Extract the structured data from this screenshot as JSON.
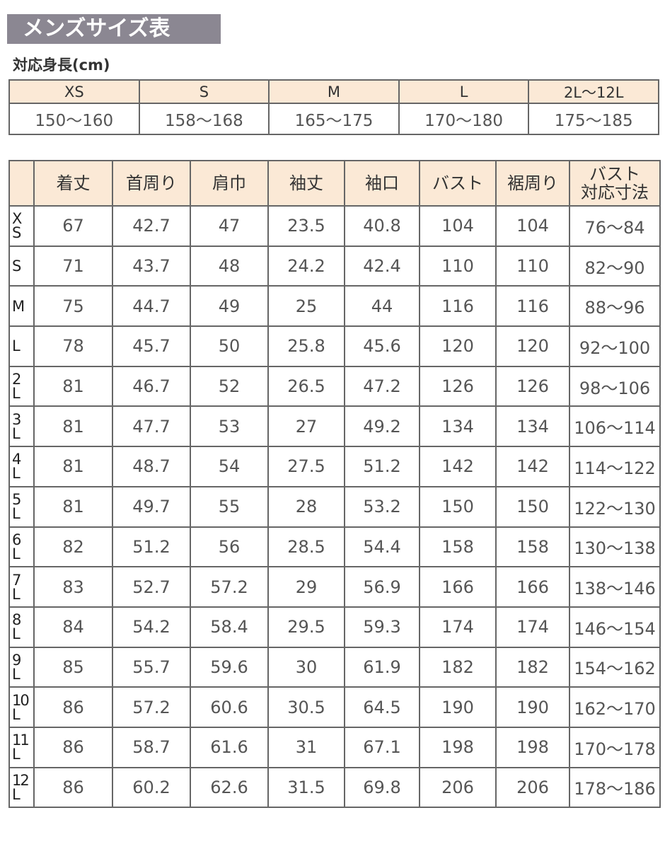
{
  "title": "メンズサイズ表",
  "height_label": "対応身長(cm)",
  "height_table": {
    "sizes": [
      "XS",
      "S",
      "M",
      "L",
      "2L〜12L"
    ],
    "heights": [
      "150〜160",
      "158〜168",
      "165〜175",
      "170〜180",
      "175〜185"
    ]
  },
  "size_table": {
    "headers": [
      "",
      "着丈",
      "首周り",
      "肩巾",
      "袖丈",
      "袖口",
      "バスト",
      "裾周り",
      "バスト\n対応寸法"
    ],
    "rows": [
      [
        "XS",
        "67",
        "42.7",
        "47",
        "23.5",
        "40.8",
        "104",
        "104",
        "76〜84"
      ],
      [
        "S",
        "71",
        "43.7",
        "48",
        "24.2",
        "42.4",
        "110",
        "110",
        "82〜90"
      ],
      [
        "M",
        "75",
        "44.7",
        "49",
        "25",
        "44",
        "116",
        "116",
        "88〜96"
      ],
      [
        "L",
        "78",
        "45.7",
        "50",
        "25.8",
        "45.6",
        "120",
        "120",
        "92〜100"
      ],
      [
        "2L",
        "81",
        "46.7",
        "52",
        "26.5",
        "47.2",
        "126",
        "126",
        "98〜106"
      ],
      [
        "3L",
        "81",
        "47.7",
        "53",
        "27",
        "49.2",
        "134",
        "134",
        "106〜114"
      ],
      [
        "4L",
        "81",
        "48.7",
        "54",
        "27.5",
        "51.2",
        "142",
        "142",
        "114〜122"
      ],
      [
        "5L",
        "81",
        "49.7",
        "55",
        "28",
        "53.2",
        "150",
        "150",
        "122〜130"
      ],
      [
        "6L",
        "82",
        "51.2",
        "56",
        "28.5",
        "54.4",
        "158",
        "158",
        "130〜138"
      ],
      [
        "7L",
        "83",
        "52.7",
        "57.2",
        "29",
        "56.9",
        "166",
        "166",
        "138〜146"
      ],
      [
        "8L",
        "84",
        "54.2",
        "58.4",
        "29.5",
        "59.3",
        "174",
        "174",
        "146〜154"
      ],
      [
        "9L",
        "85",
        "55.7",
        "59.6",
        "30",
        "61.9",
        "182",
        "182",
        "154〜162"
      ],
      [
        "10L",
        "86",
        "57.2",
        "60.6",
        "30.5",
        "64.5",
        "190",
        "190",
        "162〜170"
      ],
      [
        "11L",
        "86",
        "58.7",
        "61.6",
        "31",
        "67.1",
        "198",
        "198",
        "170〜178"
      ],
      [
        "12L",
        "86",
        "60.2",
        "62.6",
        "31.5",
        "69.8",
        "206",
        "206",
        "178〜186"
      ]
    ]
  },
  "colors": {
    "title_bg": "#8b8792",
    "header_bg": "#fbe9d6",
    "border": "#666666"
  }
}
